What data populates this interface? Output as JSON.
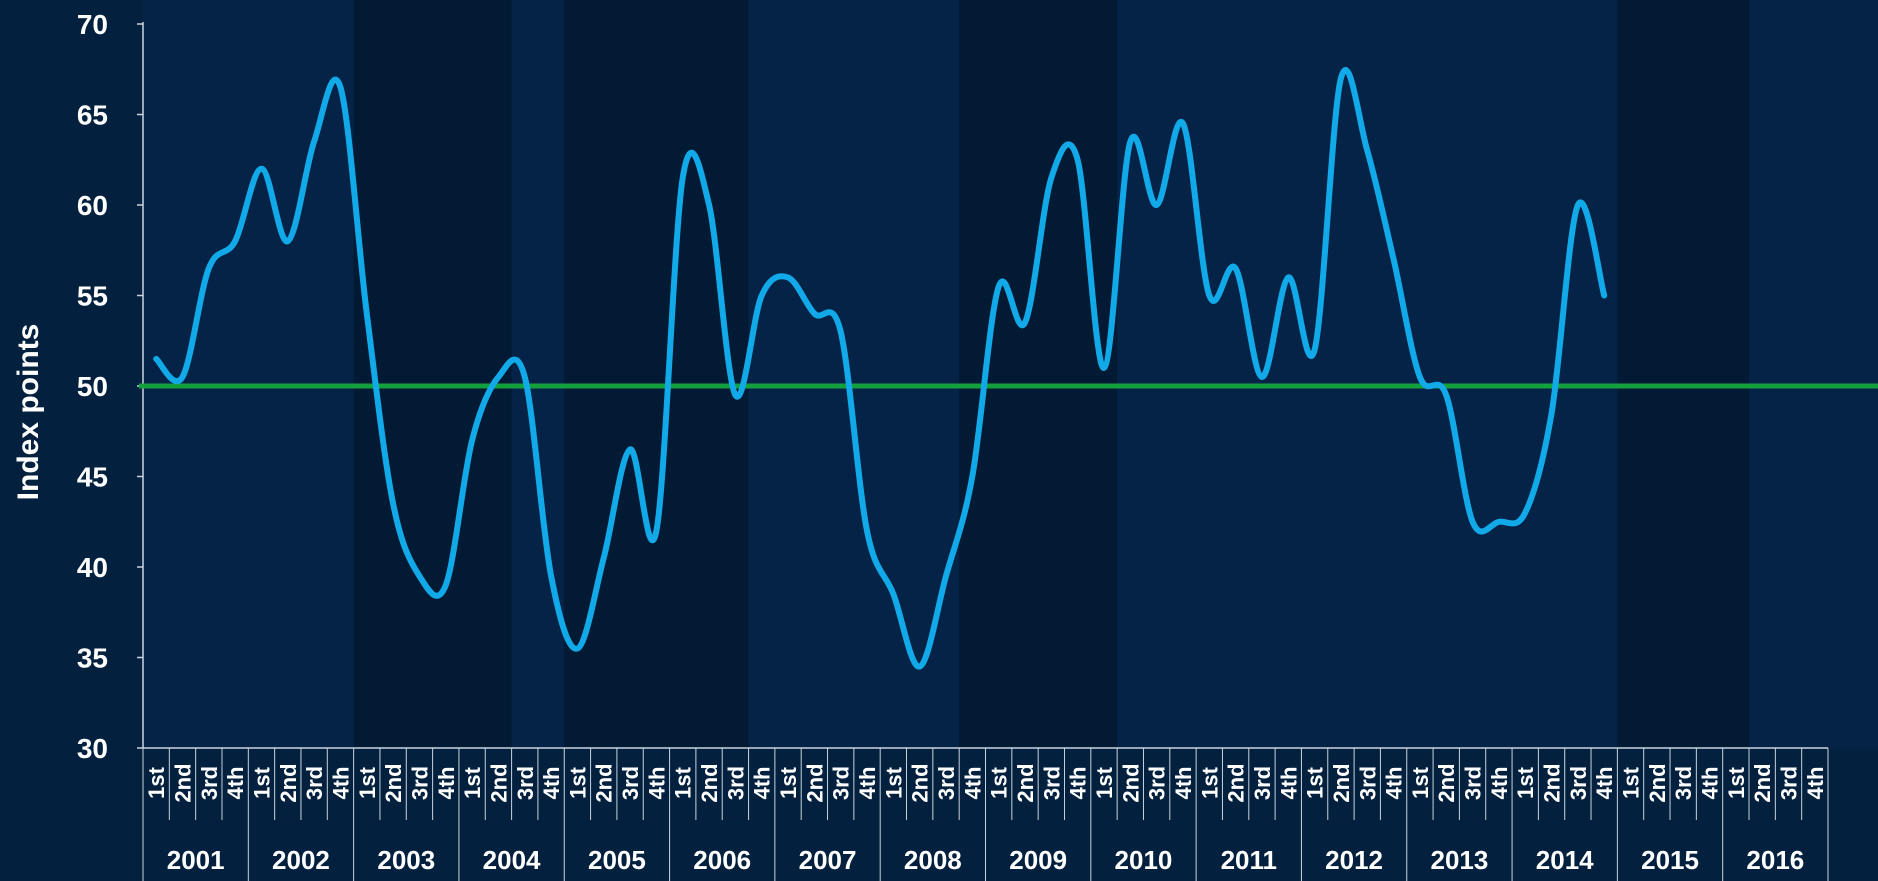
{
  "chart_data": {
    "type": "line",
    "title": "",
    "ylabel": "Index points",
    "xlabel": "",
    "ylim": [
      30,
      70
    ],
    "y_ticks": [
      30,
      35,
      40,
      45,
      50,
      55,
      60,
      65,
      70
    ],
    "grid": false,
    "legend": "none",
    "reference_line": {
      "value": 50,
      "color": "#14a03c"
    },
    "colors": {
      "background": "#03213f",
      "plot_background": "#042347",
      "shaded_band": "#021a33",
      "series_line": "#12a9e8",
      "text": "#ffffff",
      "axis": "#c9d3df"
    },
    "shaded_spans": [
      {
        "from": "2003 Q1",
        "to": "2004 Q2"
      },
      {
        "from": "2005 Q1",
        "to": "2006 Q3"
      },
      {
        "from": "2008 Q4",
        "to": "2010 Q1"
      },
      {
        "from": "2015 Q1",
        "to": "2016 Q1"
      }
    ],
    "years": [
      "2001",
      "2002",
      "2003",
      "2004",
      "2005",
      "2006",
      "2007",
      "2008",
      "2009",
      "2010",
      "2011",
      "2012",
      "2013",
      "2014",
      "2015",
      "2016"
    ],
    "quarters": [
      "1st",
      "2nd",
      "3rd",
      "4th"
    ],
    "series": [
      {
        "values": [
          51.5,
          50.5,
          56.5,
          58,
          62,
          58,
          63.5,
          66.5,
          54,
          43.5,
          39.5,
          39,
          47,
          50.5,
          50.5,
          39.5,
          35.5,
          40.5,
          46.5,
          42,
          61.5,
          60,
          49.5,
          55,
          56,
          54,
          53,
          42,
          38.5,
          34.5,
          39.5,
          45,
          55.5,
          53.5,
          61.5,
          62.5,
          51,
          63.5,
          60,
          64.5,
          55,
          56.5,
          50.5,
          56,
          52,
          67,
          63,
          57,
          50.5,
          49.5,
          42.5,
          42.5,
          43,
          48.5,
          60,
          55
        ]
      }
    ]
  }
}
